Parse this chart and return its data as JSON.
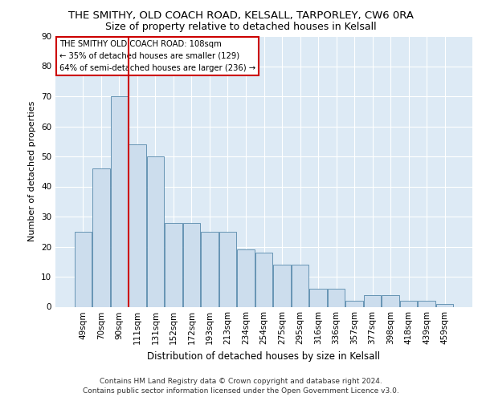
{
  "title": "THE SMITHY, OLD COACH ROAD, KELSALL, TARPORLEY, CW6 0RA",
  "subtitle": "Size of property relative to detached houses in Kelsall",
  "xlabel": "Distribution of detached houses by size in Kelsall",
  "ylabel": "Number of detached properties",
  "categories": [
    "49sqm",
    "70sqm",
    "90sqm",
    "111sqm",
    "131sqm",
    "152sqm",
    "172sqm",
    "193sqm",
    "213sqm",
    "234sqm",
    "254sqm",
    "275sqm",
    "295sqm",
    "316sqm",
    "336sqm",
    "357sqm",
    "377sqm",
    "398sqm",
    "418sqm",
    "439sqm",
    "459sqm"
  ],
  "bar_heights": [
    25,
    46,
    70,
    54,
    50,
    28,
    28,
    25,
    25,
    19,
    18,
    14,
    14,
    6,
    6,
    2,
    4,
    4,
    2,
    2,
    1
  ],
  "bar_color": "#ccdded",
  "bar_edge_color": "#5588aa",
  "background_color": "#ffffff",
  "plot_bg_color": "#ddeaf5",
  "grid_color": "#ffffff",
  "vline_color": "#cc0000",
  "annotation_text": "THE SMITHY OLD COACH ROAD: 108sqm\n← 35% of detached houses are smaller (129)\n64% of semi-detached houses are larger (236) →",
  "annotation_box_color": "#ffffff",
  "annotation_box_edge": "#cc0000",
  "ylim": [
    0,
    90
  ],
  "yticks": [
    0,
    10,
    20,
    30,
    40,
    50,
    60,
    70,
    80,
    90
  ],
  "footer": "Contains HM Land Registry data © Crown copyright and database right 2024.\nContains public sector information licensed under the Open Government Licence v3.0.",
  "title_fontsize": 9.5,
  "subtitle_fontsize": 9,
  "xlabel_fontsize": 8.5,
  "ylabel_fontsize": 8,
  "tick_fontsize": 7.5,
  "footer_fontsize": 6.5
}
